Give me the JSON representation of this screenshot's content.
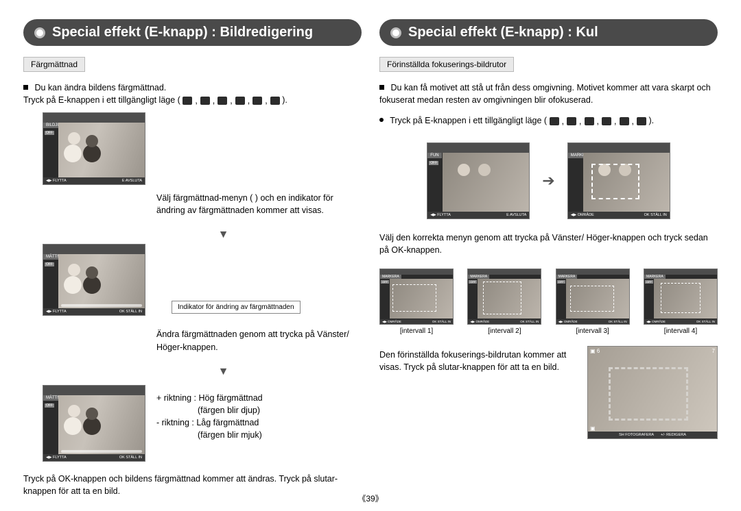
{
  "page_number": "《39》",
  "left": {
    "title": "Special effekt (E-knapp) : Bildredigering",
    "subhead": "Färgmättnad",
    "intro1": "Du kan ändra bildens färgmättnad.",
    "intro2": "Tryck på E-knappen i ett tillgängligt läge (",
    "intro2b": ").",
    "screen1": {
      "label": "BILDJUSTERING",
      "off": "OFF",
      "bot_l": "◀▶   FLYTTA",
      "bot_r": "E   AVSLUTA"
    },
    "step1": "Välj färgmättnad-menyn (        ) och en indikator för ändring av färgmättnaden kommer att visas.",
    "screen2": {
      "label": "MÄTTNAD",
      "off": "OFF",
      "bot_l": "◀▶   FLYTTA",
      "bot_r": "OK   STÄLL IN"
    },
    "callout": "Indikator för ändring av färgmättnaden",
    "step2": "Ändra färgmättnaden genom att trycka på Vänster/ Höger-knappen.",
    "screen3": {
      "label": "MÄTTNAD",
      "off": "OFF",
      "bot_l": "◀▶   FLYTTA",
      "bot_r": "OK   STÄLL IN"
    },
    "dir_plus_a": "+ riktning : Hög färgmättnad",
    "dir_plus_b": "(färgen blir djup)",
    "dir_minus_a": "-  riktning : Låg färgmättnad",
    "dir_minus_b": "(färgen blir mjuk)",
    "outro": "Tryck på OK-knappen och bildens färgmättnad kommer att ändras. Tryck på slutar-knappen för att ta en bild."
  },
  "right": {
    "title": "Special effekt (E-knapp) : Kul",
    "subhead": "Förinställda fokuserings-bildrutor",
    "intro1": "Du kan få motivet att stå ut från dess omgivning. Motivet kommer att vara skarpt och fokuserat medan resten av omgivningen blir ofokuserad.",
    "intro2": "Tryck på E-knappen i ett tillgängligt läge (",
    "intro2b": ").",
    "pair_left": {
      "label": "FUN",
      "off": "OFF",
      "bot_l": "◀▶   FLYTTA",
      "bot_r": "E   AVSLUTA"
    },
    "pair_right": {
      "label": "MARKERA",
      "bot_l": "◀▶   OMRÅDE",
      "bot_r": "OK   STÄLL IN"
    },
    "mid": "Välj den korrekta menyn genom att trycka på Vänster/ Höger-knappen och tryck sedan på OK-knappen.",
    "grid": [
      {
        "cap": "[intervall 1]",
        "label": "MARKERA",
        "off": "OFF",
        "bl": "◀▶ OMRÅDE",
        "br": "OK STÄLL IN",
        "fx": 18,
        "fy": 22,
        "fw": 64,
        "fh": 40
      },
      {
        "cap": "[intervall 2]",
        "label": "MARKERA",
        "off": "OFF",
        "bl": "◀▶ OMRÅDE",
        "br": "OK STÄLL IN",
        "fx": 22,
        "fy": 18,
        "fw": 56,
        "fh": 48
      },
      {
        "cap": "[intervall 3]",
        "label": "MARKERA",
        "off": "OFF",
        "bl": "◀▶ OMRÅDE",
        "br": "OK STÄLL IN",
        "fx": 20,
        "fy": 24,
        "fw": 64,
        "fh": 38
      },
      {
        "cap": "[intervall 4]",
        "label": "MARKERA",
        "off": "OFF",
        "bl": "◀▶ OMRÅDE",
        "br": "OK STÄLL IN",
        "fx": 24,
        "fy": 20,
        "fw": 58,
        "fh": 44
      }
    ],
    "final_txt": "Den förinställda fokuserings-bildrutan kommer att visas. Tryck på slutar-knappen för att ta en bild.",
    "final_big": {
      "tl": "▣ 6",
      "tr": "7",
      "bl": "▣",
      "bot_l": "SH  FOTOGRAFERA",
      "bot_r": "+/-  REDIGERA"
    }
  },
  "colors": {
    "pill_bg": "#4a4a4a",
    "pill_fg": "#ffffff",
    "subhead_bg": "#e9e9e9",
    "subhead_border": "#b9b9b9",
    "screen_bg": "#2b2b2b"
  }
}
